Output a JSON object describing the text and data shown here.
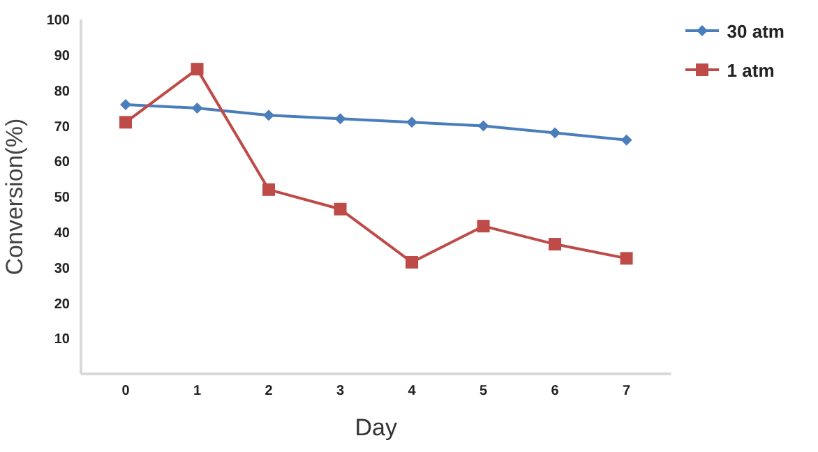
{
  "chart_data": {
    "type": "line",
    "xlabel": "Day",
    "ylabel": "Conversion(%)",
    "categories": [
      "0",
      "1",
      "2",
      "3",
      "4",
      "5",
      "6",
      "7"
    ],
    "series": [
      {
        "name": "30 atm",
        "color": "#4a7ebb",
        "marker": "diamond",
        "values": [
          76,
          75,
          73,
          72,
          71,
          70,
          68,
          66
        ]
      },
      {
        "name": "1 atm",
        "color": "#be4b48",
        "marker": "square",
        "values": [
          71,
          86,
          52,
          46.5,
          31.5,
          41.7,
          36.6,
          32.6
        ]
      }
    ],
    "ylim": [
      0,
      100
    ],
    "yticks": [
      10,
      20,
      30,
      40,
      50,
      60,
      70,
      80,
      90,
      100
    ],
    "legend": "top right",
    "grid": false
  }
}
